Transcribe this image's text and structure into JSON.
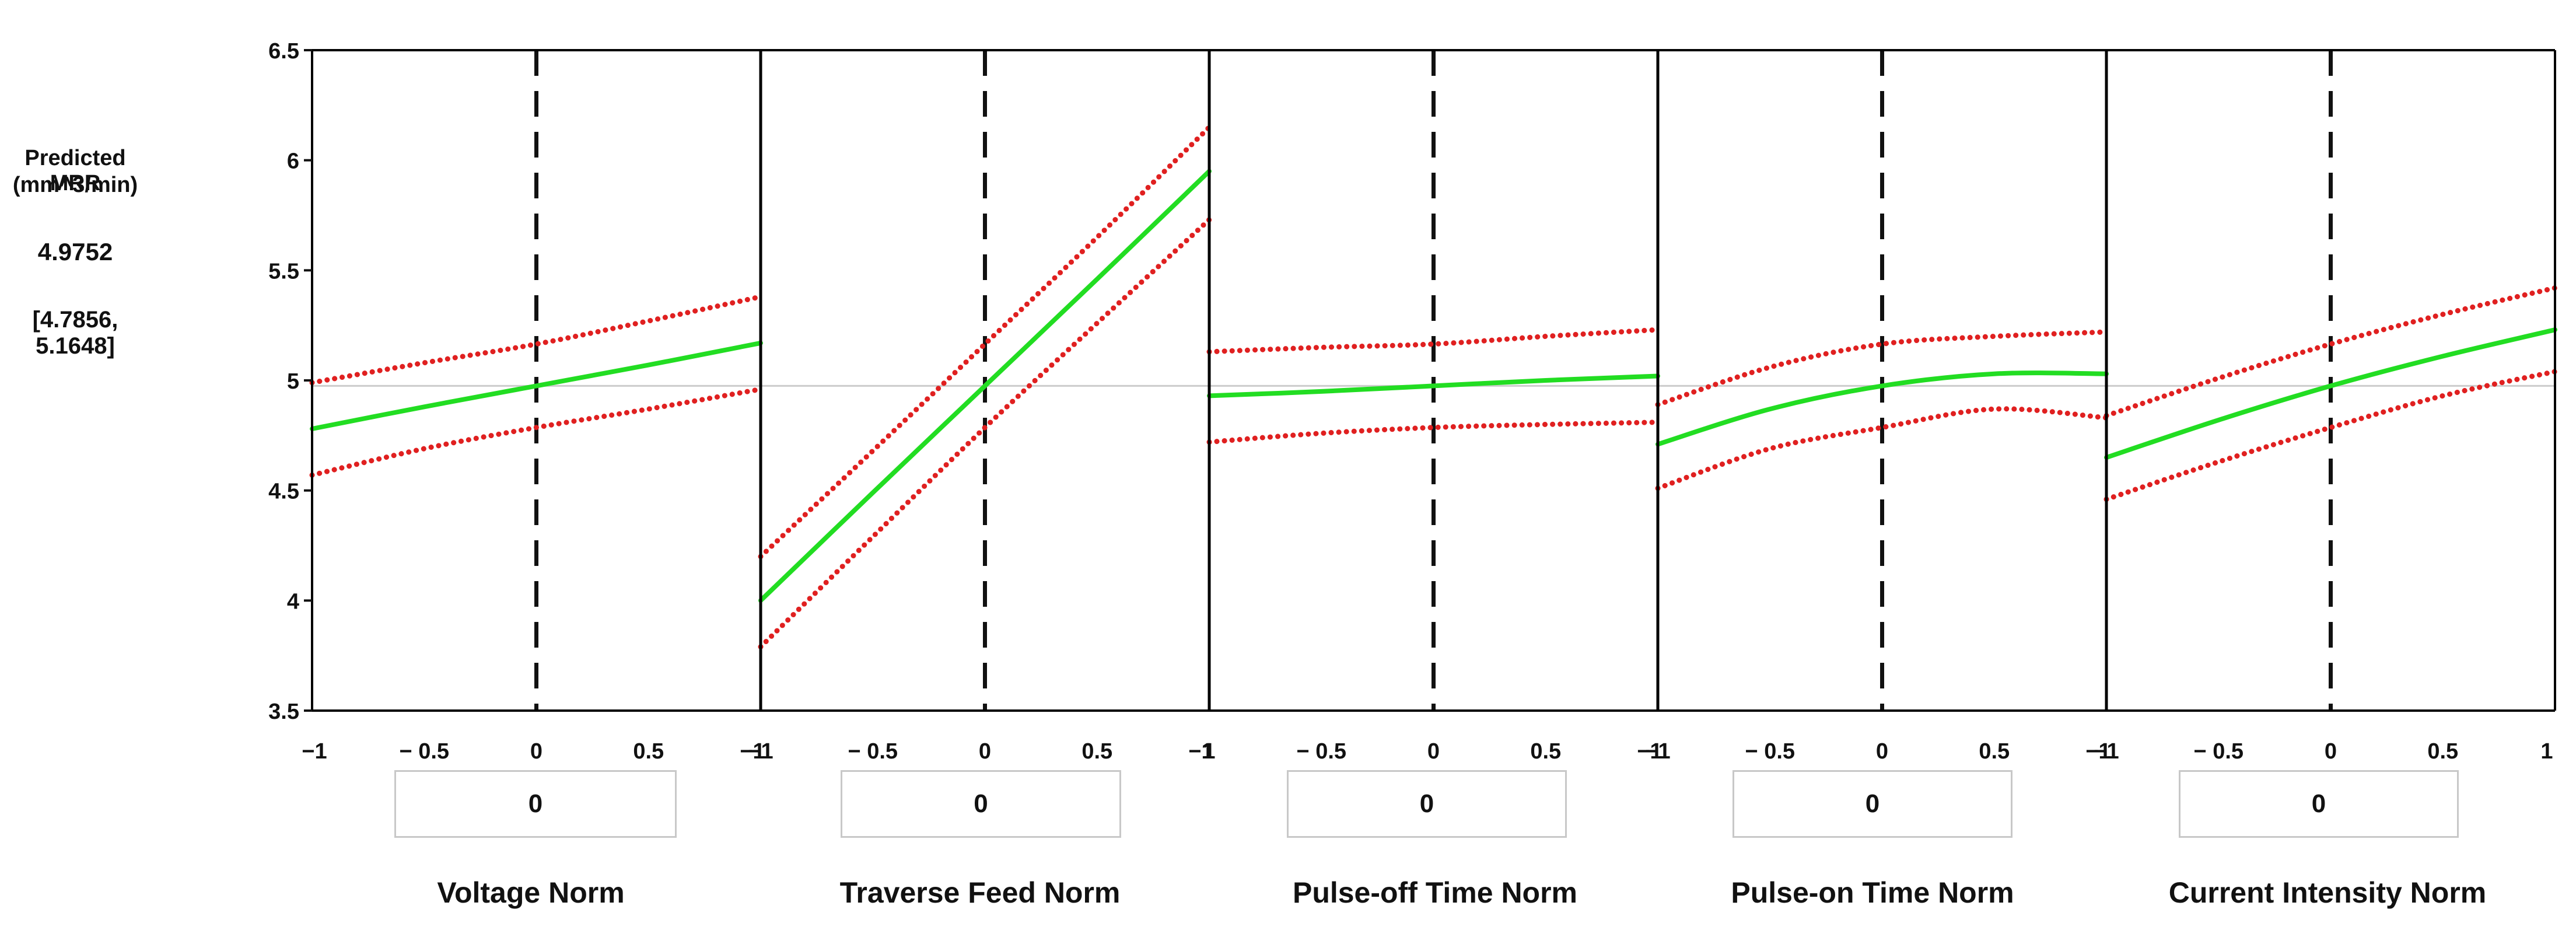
{
  "response": {
    "label_line1": "Predicted MRR",
    "label_line2": "(mm^3/min)",
    "value": "4.9752",
    "interval": "[4.7856, 5.1648]"
  },
  "colors": {
    "fit_line": "#22dd22",
    "bounds": "#e02020",
    "axes": "#000000",
    "reference_line": "#cccccc"
  },
  "chart_data": {
    "type": "line",
    "title": "",
    "ylabel": "Predicted MRR (mm^3/min)",
    "ylim": [
      3.5,
      6.5
    ],
    "yticks": [
      3.5,
      4,
      4.5,
      5,
      5.5,
      6,
      6.5
    ],
    "ytick_labels": [
      "3.5",
      "4",
      "4.5",
      "5",
      "5.5",
      "6",
      "6.5"
    ],
    "xlim": [
      -1,
      1
    ],
    "xtick_labels": [
      [
        "−1",
        "− 0.5",
        "0",
        "0.5",
        "−1"
      ],
      [
        "−1",
        "− 0.5",
        "0",
        "0.5",
        "−1"
      ],
      [
        "1",
        "− 0.5",
        "0",
        "0.5",
        "−1"
      ],
      [
        "−1",
        "− 0.5",
        "0",
        "0.5",
        "−1"
      ],
      [
        "−1",
        "− 0.5",
        "0",
        "0.5",
        "1"
      ]
    ],
    "reference_y": 4.9752,
    "x": [
      -1,
      -0.5,
      0,
      0.5,
      1
    ],
    "panels": [
      {
        "factor": "Voltage Norm",
        "current_value": "0",
        "series": [
          {
            "name": "prediction",
            "values": [
              4.78,
              4.88,
              4.975,
              5.07,
              5.17
            ]
          },
          {
            "name": "upper bound",
            "values": [
              4.99,
              5.08,
              5.165,
              5.27,
              5.38
            ]
          },
          {
            "name": "lower bound",
            "values": [
              4.57,
              4.69,
              4.786,
              4.87,
              4.96
            ]
          }
        ]
      },
      {
        "factor": "Traverse Feed Norm",
        "current_value": "0",
        "series": [
          {
            "name": "prediction",
            "values": [
              4.0,
              4.49,
              4.975,
              5.46,
              5.95
            ]
          },
          {
            "name": "upper bound",
            "values": [
              4.2,
              4.68,
              5.165,
              5.65,
              6.15
            ]
          },
          {
            "name": "lower bound",
            "values": [
              3.79,
              4.29,
              4.786,
              5.26,
              5.73
            ]
          }
        ]
      },
      {
        "factor": "Pulse-off Time Norm",
        "current_value": "0",
        "series": [
          {
            "name": "prediction",
            "values": [
              4.93,
              4.95,
              4.975,
              5.0,
              5.02
            ]
          },
          {
            "name": "upper bound",
            "values": [
              5.13,
              5.15,
              5.165,
              5.2,
              5.23
            ]
          },
          {
            "name": "lower bound",
            "values": [
              4.72,
              4.76,
              4.786,
              4.8,
              4.81
            ]
          }
        ]
      },
      {
        "factor": "Pulse-on Time Norm",
        "current_value": "0",
        "series": [
          {
            "name": "prediction",
            "values": [
              4.71,
              4.87,
              4.975,
              5.03,
              5.03
            ]
          },
          {
            "name": "upper bound",
            "values": [
              4.89,
              5.06,
              5.165,
              5.2,
              5.22
            ]
          },
          {
            "name": "lower bound",
            "values": [
              4.51,
              4.69,
              4.786,
              4.87,
              4.83
            ]
          }
        ]
      },
      {
        "factor": "Current Intensity Norm",
        "current_value": "0",
        "series": [
          {
            "name": "prediction",
            "values": [
              4.65,
              4.82,
              4.975,
              5.11,
              5.23
            ]
          },
          {
            "name": "upper bound",
            "values": [
              4.84,
              5.01,
              5.165,
              5.3,
              5.42
            ]
          },
          {
            "name": "lower bound",
            "values": [
              4.46,
              4.63,
              4.786,
              4.93,
              5.04
            ]
          }
        ]
      }
    ]
  }
}
